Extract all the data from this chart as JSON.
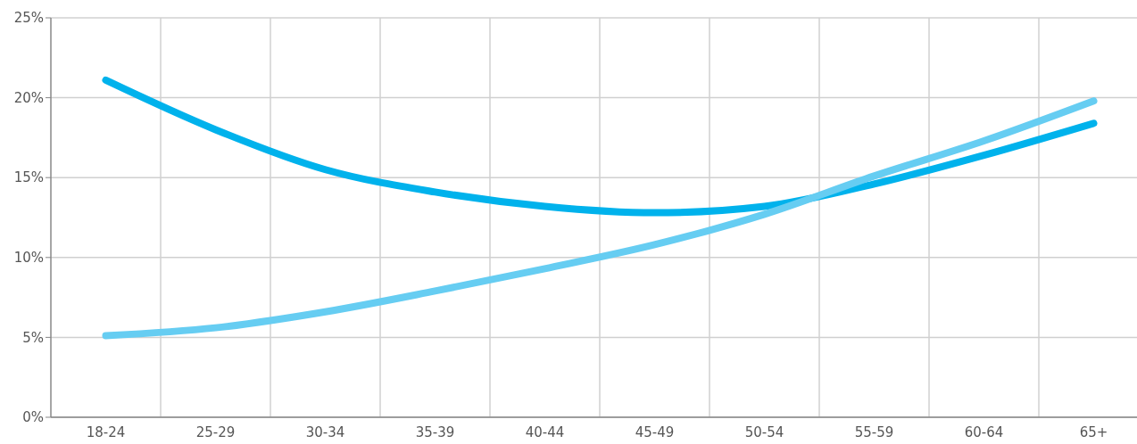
{
  "chart_data": {
    "type": "line",
    "categories": [
      "18-24",
      "25-29",
      "30-34",
      "35-39",
      "40-44",
      "45-49",
      "50-54",
      "55-59",
      "60-64",
      "65+"
    ],
    "series": [
      {
        "color": "#00b2ec",
        "values": [
          21.1,
          18.0,
          15.5,
          14.1,
          13.2,
          12.8,
          13.2,
          14.6,
          16.4,
          18.4
        ]
      },
      {
        "color": "#66cdf2",
        "values": [
          5.1,
          5.6,
          6.6,
          7.9,
          9.3,
          10.8,
          12.7,
          15.1,
          17.3,
          19.8
        ]
      }
    ],
    "ylim": [
      0,
      25
    ],
    "yticks": [
      {
        "value": 0,
        "label": "0%"
      },
      {
        "value": 5,
        "label": "5%"
      },
      {
        "value": 10,
        "label": "10%"
      },
      {
        "value": 15,
        "label": "15%"
      },
      {
        "value": 20,
        "label": "20%"
      },
      {
        "value": 25,
        "label": "25%"
      }
    ],
    "grid": true,
    "marker": "none",
    "line_style": "solid"
  }
}
